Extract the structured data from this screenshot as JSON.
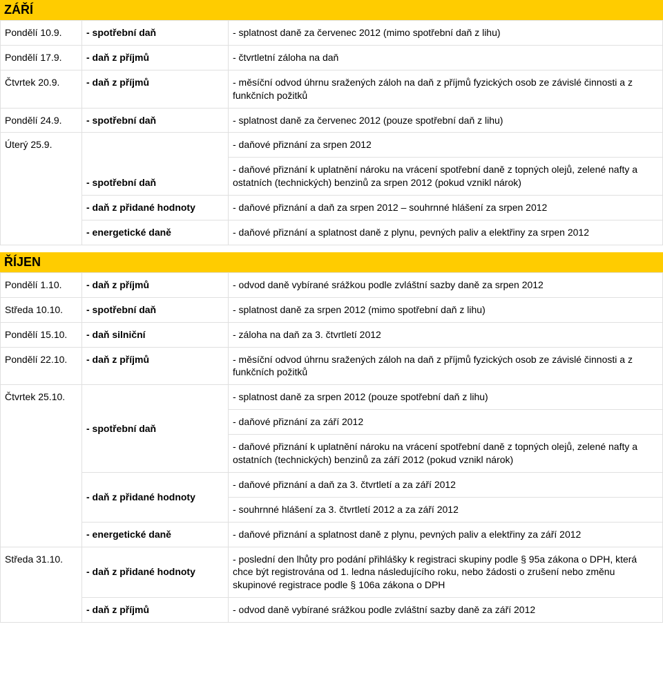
{
  "sections": [
    {
      "title": "ZÁŘÍ",
      "rows": [
        {
          "c1": "Pondělí 10.9.",
          "c2": "- spotřební daň",
          "c3": "- splatnost daně za červenec 2012 (mimo spotřební daň z lihu)"
        },
        {
          "c1": "Pondělí 17.9.",
          "c2": "- daň z příjmů",
          "c3": "- čtvrtletní záloha na daň"
        },
        {
          "c1": "Čtvrtek 20.9.",
          "c2": "- daň z příjmů",
          "c3": "- měsíční odvod úhrnu sražených záloh na daň z příjmů fyzických osob ze závislé činnosti a z funkčních požitků"
        },
        {
          "c1": "Pondělí 24.9.",
          "c2": "- spotřební daň",
          "c3": "- splatnost daně za červenec 2012 (pouze spotřební daň z lihu)"
        },
        {
          "c1": "Úterý 25.9.",
          "c1_rowspan": 4,
          "c2": "",
          "c3": "- daňové přiznání za srpen 2012"
        },
        {
          "c2": "- spotřební daň",
          "c3": "- daňové přiznání k uplatnění nároku na vrácení spotřební daně z topných olejů, zelené nafty a ostatních (technických) benzinů za srpen 2012 (pokud vznikl nárok)"
        },
        {
          "c2": "- daň z přidané hodnoty",
          "c3": "- daňové přiznání a daň za srpen 2012 – souhrnné hlášení za srpen 2012"
        },
        {
          "c2": "- energetické daně",
          "c3": "- daňové přiznání a splatnost daně z plynu, pevných paliv a elektřiny za srpen 2012"
        }
      ]
    },
    {
      "title": "ŘÍJEN",
      "rows": [
        {
          "c1": "Pondělí 1.10.",
          "c2": "- daň z příjmů",
          "c3": "- odvod daně vybírané srážkou podle zvláštní sazby daně za srpen 2012"
        },
        {
          "c1": "Středa 10.10.",
          "c2": "- spotřební daň",
          "c3": "- splatnost daně za srpen 2012 (mimo spotřební daň z lihu)"
        },
        {
          "c1": "Pondělí 15.10.",
          "c2": "- daň silniční",
          "c3": "- záloha na daň za 3. čtvrtletí 2012"
        },
        {
          "c1": "Pondělí 22.10.",
          "c2": "- daň z příjmů",
          "c3": "- měsíční odvod úhrnu sražených záloh na daň z příjmů fyzických osob ze závislé činnosti a z funkčních požitků"
        },
        {
          "c1": "Čtvrtek 25.10.",
          "c1_rowspan": 6,
          "c2": "",
          "c2_rowspan": 3,
          "c2b": "- spotřební daň",
          "c3": "- splatnost daně za srpen 2012 (pouze spotřební daň z lihu)"
        },
        {
          "c3": "- daňové přiznání za září 2012"
        },
        {
          "c3": "- daňové přiznání k uplatnění nároku na vrácení spotřební daně z topných olejů, zelené nafty a ostatních (technických) benzinů za září 2012 (pokud vznikl nárok)"
        },
        {
          "c2": "- daň z přidané hodnoty",
          "c2_rowspan": 2,
          "c3": "- daňové přiznání a daň za 3. čtvrtletí a za září 2012"
        },
        {
          "c3": "- souhrnné hlášení za 3. čtvrtletí 2012 a za září 2012"
        },
        {
          "c2": "- energetické daně",
          "c3": "- daňové přiznání a splatnost daně z plynu, pevných paliv a elektřiny za září 2012"
        },
        {
          "c1": "Středa 31.10.",
          "c1_rowspan": 2,
          "c2": "- daň z přidané hodnoty",
          "c3": "- poslední den lhůty pro podání přihlášky k registraci skupiny podle § 95a zákona o DPH, která chce být registrována od 1. ledna následujícího roku, nebo žádosti o zrušení nebo změnu skupinové registrace podle § 106a zákona o DPH"
        },
        {
          "c2": "- daň z příjmů",
          "c3": "- odvod daně vybírané srážkou podle zvláštní sazby daně za září 2012"
        }
      ]
    }
  ],
  "colors": {
    "header_bg": "#ffcc00",
    "border": "#e0e0e0",
    "text": "#000000",
    "bg": "#ffffff"
  },
  "typography": {
    "body_fontsize": 14,
    "header_fontsize": 18,
    "font_family": "Arial"
  }
}
